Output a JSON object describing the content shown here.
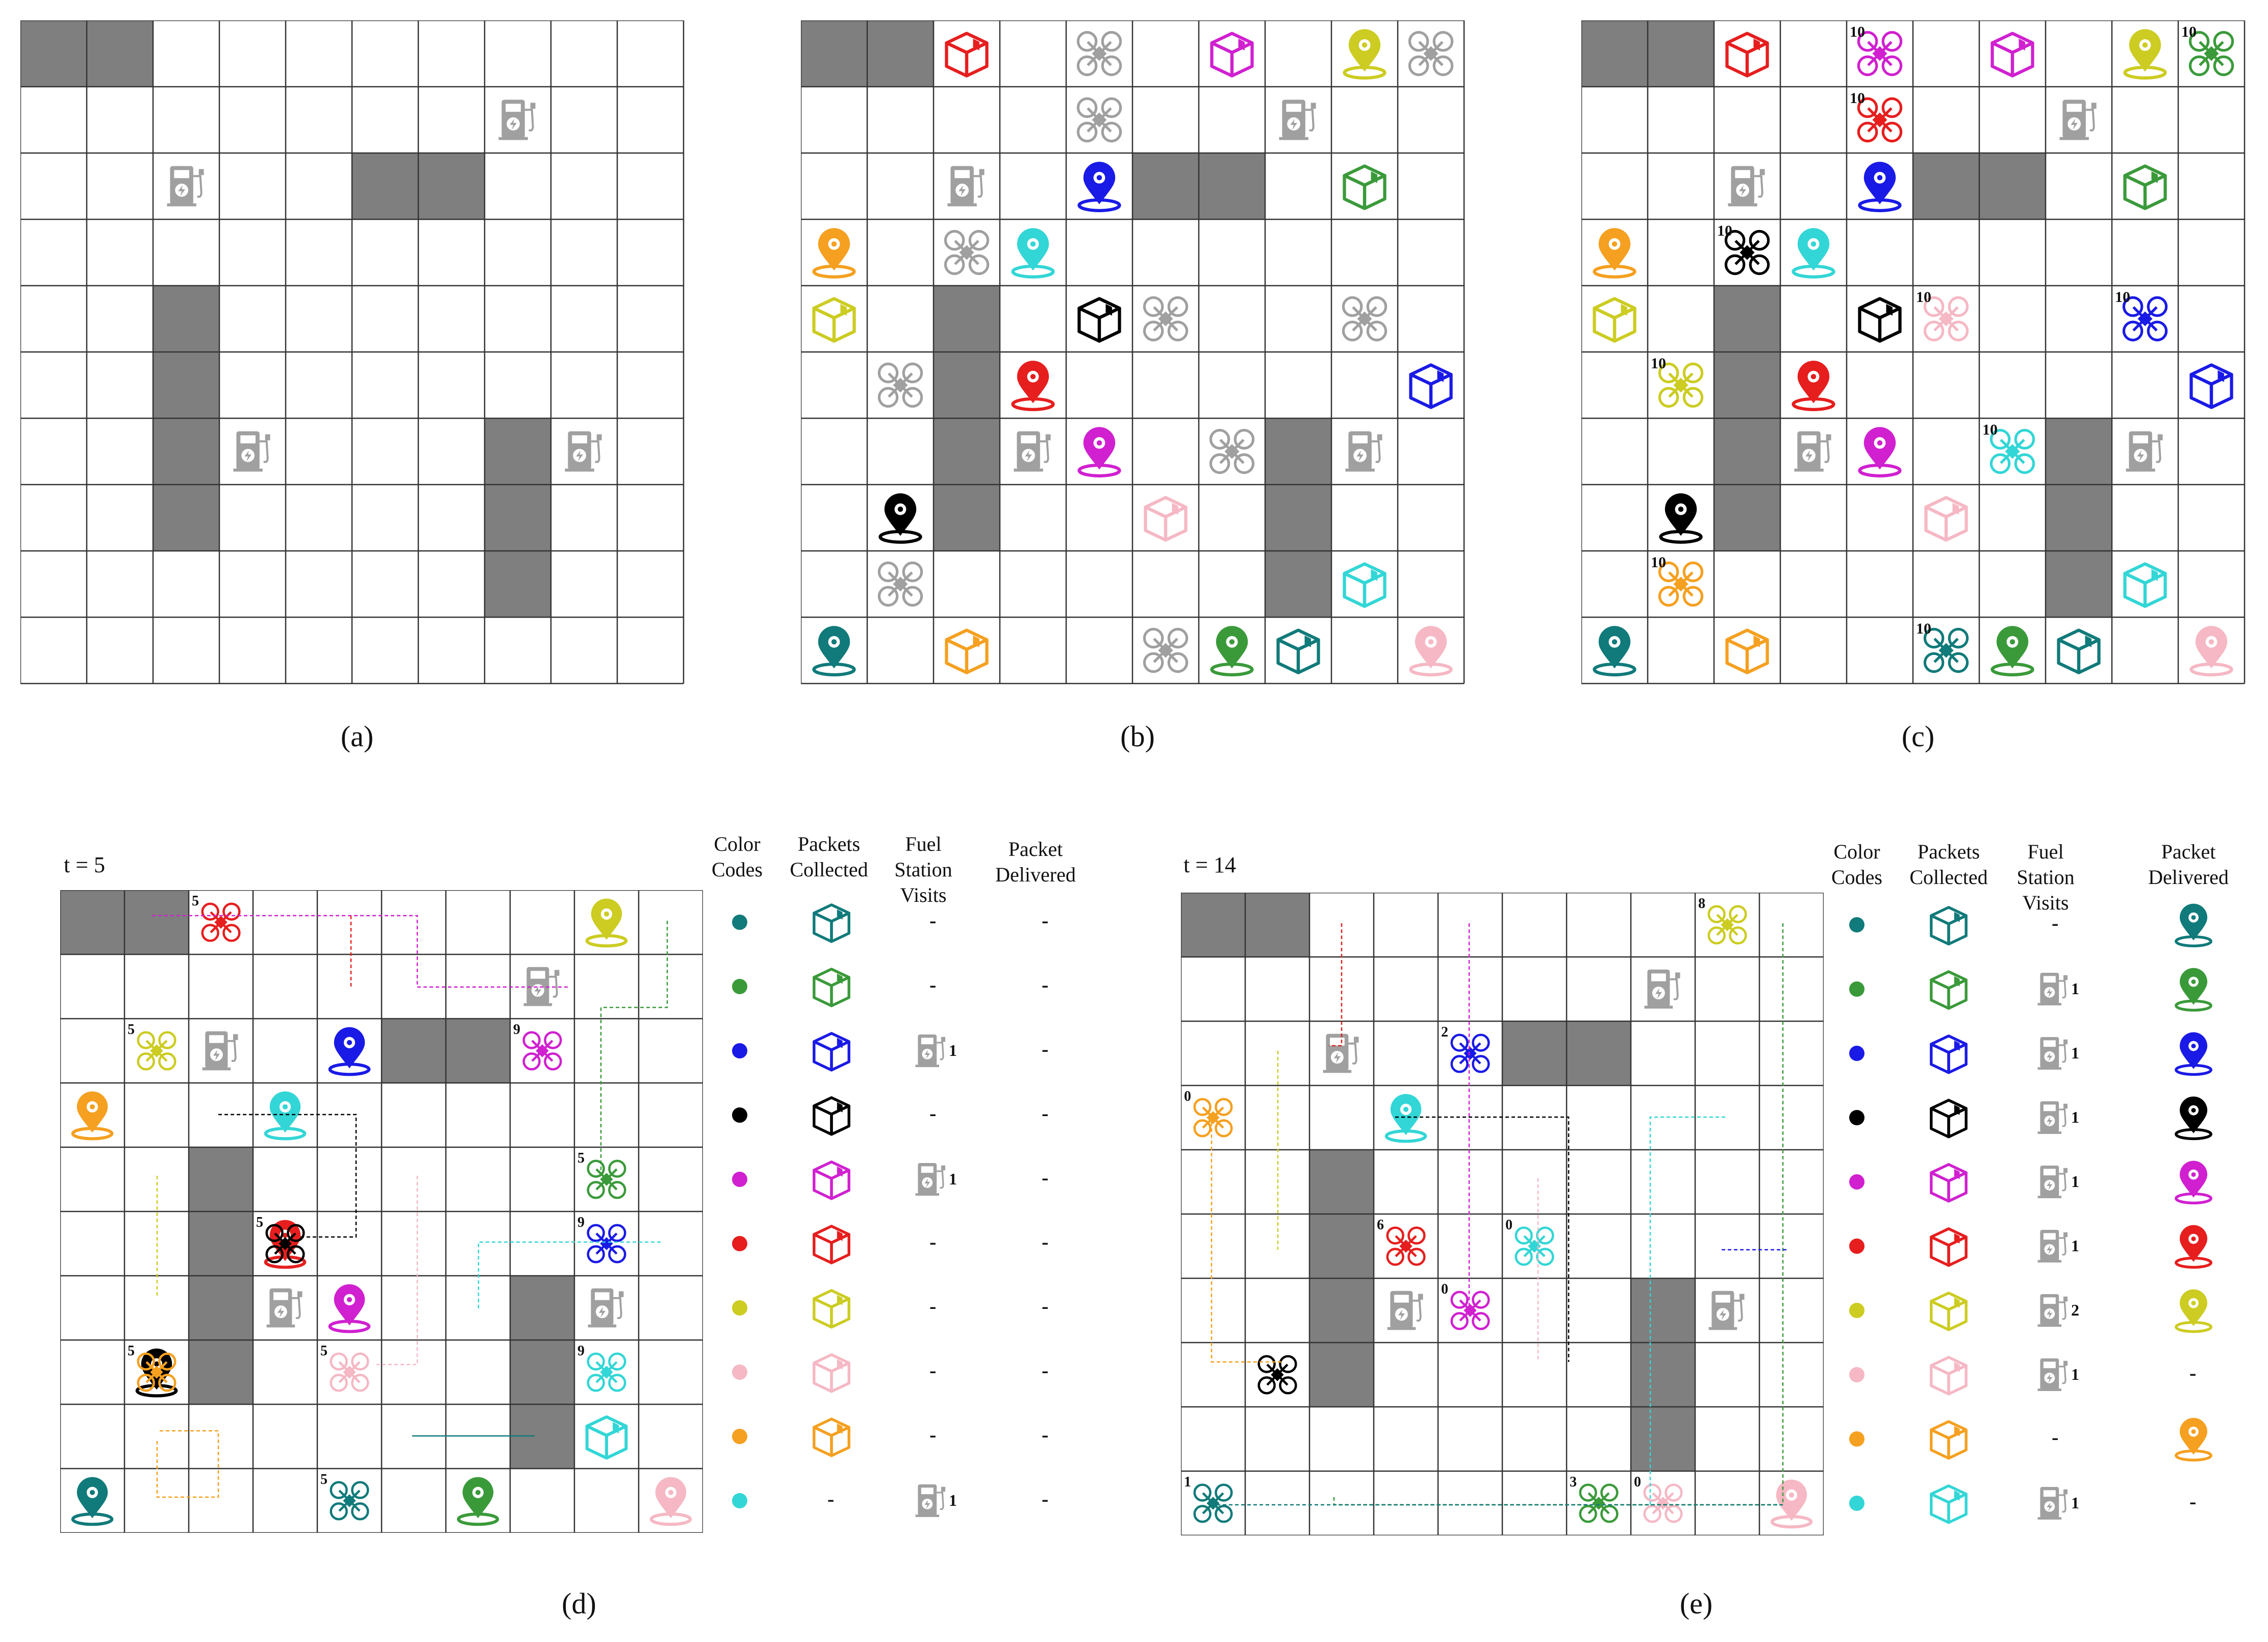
{
  "captions": {
    "a": "(a)",
    "b": "(b)",
    "c": "(c)",
    "d": "(d)",
    "e": "(e)"
  },
  "panel_d": {
    "time_label": "t = 5"
  },
  "panel_e": {
    "time_label": "t = 14"
  },
  "legend_headers": {
    "color_codes": "Color Codes",
    "packets_collected": "Packets Collected",
    "fuel_station_visits": "Fuel Station Visits",
    "packet_delivered": "Packet Delivered"
  },
  "agent_colors": [
    "#117a7a",
    "#3a9a3a",
    "#1a1ae6",
    "#000000",
    "#d020d0",
    "#e61e1e",
    "#cccc22",
    "#f5b8c4",
    "#f5a020",
    "#33d6d6"
  ],
  "obstacle_color": "#7f7f7f",
  "neutral_color": "#a0a0a0",
  "grid": {
    "rows": 10,
    "cols": 10,
    "obstacles": [
      [
        0,
        0
      ],
      [
        0,
        1
      ],
      [
        2,
        5
      ],
      [
        2,
        6
      ],
      [
        4,
        2
      ],
      [
        5,
        2
      ],
      [
        6,
        2
      ],
      [
        7,
        2
      ],
      [
        6,
        7
      ],
      [
        7,
        7
      ],
      [
        8,
        7
      ]
    ],
    "fuel_stations": [
      [
        1,
        7
      ],
      [
        2,
        2
      ],
      [
        6,
        3
      ],
      [
        6,
        8
      ]
    ]
  },
  "panel_b": {
    "packets": [
      {
        "r": 0,
        "c": 2,
        "a": 5
      },
      {
        "r": 0,
        "c": 6,
        "a": 4
      },
      {
        "r": 2,
        "c": 8,
        "a": 1
      },
      {
        "r": 4,
        "c": 0,
        "a": 6
      },
      {
        "r": 4,
        "c": 4,
        "a": 3
      },
      {
        "r": 5,
        "c": 9,
        "a": 2
      },
      {
        "r": 7,
        "c": 5,
        "a": 7
      },
      {
        "r": 8,
        "c": 8,
        "a": 9
      },
      {
        "r": 9,
        "c": 2,
        "a": 8
      },
      {
        "r": 9,
        "c": 7,
        "a": 0
      }
    ],
    "destinations": [
      {
        "r": 0,
        "c": 8,
        "a": 6
      },
      {
        "r": 2,
        "c": 4,
        "a": 2
      },
      {
        "r": 3,
        "c": 0,
        "a": 8
      },
      {
        "r": 3,
        "c": 3,
        "a": 9
      },
      {
        "r": 5,
        "c": 3,
        "a": 5
      },
      {
        "r": 6,
        "c": 4,
        "a": 4
      },
      {
        "r": 7,
        "c": 1,
        "a": 3
      },
      {
        "r": 9,
        "c": 0,
        "a": 0
      },
      {
        "r": 9,
        "c": 6,
        "a": 1
      },
      {
        "r": 9,
        "c": 9,
        "a": 7
      }
    ],
    "drones": [
      [
        0,
        4
      ],
      [
        0,
        9
      ],
      [
        1,
        4
      ],
      [
        3,
        2
      ],
      [
        4,
        5
      ],
      [
        4,
        8
      ],
      [
        5,
        1
      ],
      [
        6,
        6
      ],
      [
        8,
        1
      ],
      [
        9,
        5
      ]
    ]
  },
  "panel_c": {
    "drones": [
      {
        "r": 0,
        "c": 4,
        "a": 4,
        "f": "10"
      },
      {
        "r": 0,
        "c": 9,
        "a": 1,
        "f": "10"
      },
      {
        "r": 1,
        "c": 4,
        "a": 5,
        "f": "10"
      },
      {
        "r": 3,
        "c": 2,
        "a": 3,
        "f": "10"
      },
      {
        "r": 4,
        "c": 5,
        "a": 7,
        "f": "10"
      },
      {
        "r": 4,
        "c": 8,
        "a": 2,
        "f": "10"
      },
      {
        "r": 5,
        "c": 1,
        "a": 6,
        "f": "10"
      },
      {
        "r": 6,
        "c": 6,
        "a": 9,
        "f": "10"
      },
      {
        "r": 8,
        "c": 1,
        "a": 8,
        "f": "10"
      },
      {
        "r": 9,
        "c": 5,
        "a": 0,
        "f": "10"
      }
    ]
  },
  "panel_d_state": {
    "packets": [
      {
        "r": 8,
        "c": 8,
        "a": 9
      }
    ],
    "destinations": [
      {
        "r": 0,
        "c": 8,
        "a": 6
      },
      {
        "r": 2,
        "c": 4,
        "a": 2
      },
      {
        "r": 3,
        "c": 0,
        "a": 8
      },
      {
        "r": 3,
        "c": 3,
        "a": 9
      },
      {
        "r": 5,
        "c": 3,
        "a": 5
      },
      {
        "r": 6,
        "c": 4,
        "a": 4
      },
      {
        "r": 7,
        "c": 1,
        "a": 3
      },
      {
        "r": 9,
        "c": 0,
        "a": 0
      },
      {
        "r": 9,
        "c": 6,
        "a": 1
      },
      {
        "r": 9,
        "c": 9,
        "a": 7
      }
    ],
    "drones": [
      {
        "r": 0,
        "c": 2,
        "a": 5,
        "f": "5"
      },
      {
        "r": 2,
        "c": 1,
        "a": 6,
        "f": "5"
      },
      {
        "r": 2,
        "c": 7,
        "a": 4,
        "f": "9"
      },
      {
        "r": 4,
        "c": 8,
        "a": 1,
        "f": "5"
      },
      {
        "r": 5,
        "c": 3,
        "a": 3,
        "f": "5"
      },
      {
        "r": 5,
        "c": 8,
        "a": 2,
        "f": "9"
      },
      {
        "r": 7,
        "c": 1,
        "a": 8,
        "f": "5"
      },
      {
        "r": 7,
        "c": 4,
        "a": 7,
        "f": "5"
      },
      {
        "r": 7,
        "c": 8,
        "a": 9,
        "f": "9"
      },
      {
        "r": 9,
        "c": 4,
        "a": 0,
        "f": "5"
      }
    ],
    "legend": [
      {
        "fuel": "-",
        "delivered": "-"
      },
      {
        "fuel": "-",
        "delivered": "-"
      },
      {
        "fuel": "1",
        "delivered": "-"
      },
      {
        "fuel": "-",
        "delivered": "-"
      },
      {
        "fuel": "1",
        "delivered": "-"
      },
      {
        "fuel": "-",
        "delivered": "-"
      },
      {
        "fuel": "-",
        "delivered": "-"
      },
      {
        "fuel": "-",
        "delivered": "-"
      },
      {
        "fuel": "-",
        "delivered": "-"
      },
      {
        "fuel": "1",
        "delivered": "-"
      }
    ],
    "collected_missing": "-"
  },
  "panel_e_state": {
    "destinations": [
      {
        "r": 3,
        "c": 3,
        "a": 9
      },
      {
        "r": 9,
        "c": 9,
        "a": 7
      }
    ],
    "drones": [
      {
        "r": 0,
        "c": 8,
        "a": 6,
        "f": "8"
      },
      {
        "r": 2,
        "c": 4,
        "a": 2,
        "f": "2"
      },
      {
        "r": 3,
        "c": 0,
        "a": 8,
        "f": "0"
      },
      {
        "r": 5,
        "c": 3,
        "a": 5,
        "f": "6"
      },
      {
        "r": 5,
        "c": 5,
        "a": 9,
        "f": "0"
      },
      {
        "r": 6,
        "c": 4,
        "a": 4,
        "f": "0"
      },
      {
        "r": 7,
        "c": 1,
        "a": 3,
        "f": ""
      },
      {
        "r": 9,
        "c": 0,
        "a": 0,
        "f": "1"
      },
      {
        "r": 9,
        "c": 6,
        "a": 1,
        "f": "3"
      },
      {
        "r": 9,
        "c": 7,
        "a": 7,
        "f": "0"
      }
    ],
    "legend": [
      {
        "fuel": "-",
        "delivered": "pin"
      },
      {
        "fuel": "1",
        "delivered": "pin"
      },
      {
        "fuel": "1",
        "delivered": "pin"
      },
      {
        "fuel": "1",
        "delivered": "pin"
      },
      {
        "fuel": "1",
        "delivered": "pin"
      },
      {
        "fuel": "1",
        "delivered": "pin"
      },
      {
        "fuel": "2",
        "delivered": "pin"
      },
      {
        "fuel": "1",
        "delivered": "-"
      },
      {
        "fuel": "-",
        "delivered": "pin"
      },
      {
        "fuel": "1",
        "delivered": "-"
      }
    ]
  }
}
